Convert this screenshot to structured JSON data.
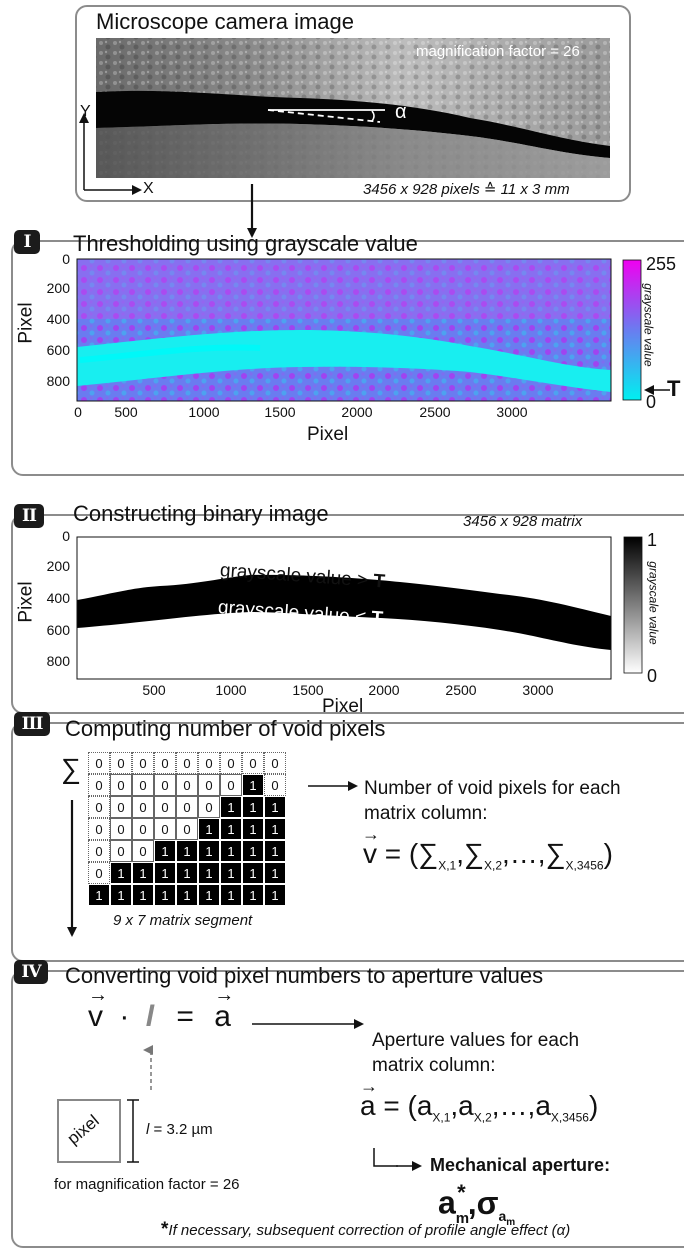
{
  "top": {
    "title": "Microscope camera image",
    "magnification": "magnification factor = 26",
    "angle_label": "α",
    "axis_y": "Y",
    "axis_x": "X",
    "dimensions": "3456 x 928 pixels ≙ 11 x 3 mm"
  },
  "step1": {
    "badge": "I",
    "title": "Thresholding using grayscale value",
    "ylabel": "Pixel",
    "xlabel": "Pixel",
    "yticks": [
      "0",
      "200",
      "400",
      "600",
      "800"
    ],
    "xticks": [
      "0",
      "500",
      "1000",
      "1500",
      "2000",
      "2500",
      "3000"
    ],
    "cbar_max": "255",
    "cbar_min": "0",
    "cbar_label": "grayscale value",
    "threshold": "T",
    "colors": {
      "low": "#00f0f0",
      "mid": "#6a7cf0",
      "high": "#f000f0"
    }
  },
  "step2": {
    "badge": "II",
    "title": "Constructing binary image",
    "matrix_size": "3456 x 928 matrix",
    "ylabel": "Pixel",
    "xlabel": "Pixel",
    "yticks": [
      "0",
      "200",
      "400",
      "600",
      "800"
    ],
    "xticks": [
      "500",
      "1000",
      "1500",
      "2000",
      "2500",
      "3000"
    ],
    "above_label": "grayscale value > ",
    "below_label": "grayscale value < ",
    "threshold": "T",
    "cbar_max": "1",
    "cbar_min": "0",
    "cbar_label": "grayscale value"
  },
  "step3": {
    "badge": "III",
    "title": "Computing number of void pixels",
    "sum_symbol": "∑",
    "matrix": [
      [
        0,
        0,
        0,
        0,
        0,
        0,
        0,
        0,
        0
      ],
      [
        0,
        0,
        0,
        0,
        0,
        0,
        0,
        1,
        0
      ],
      [
        0,
        0,
        0,
        0,
        0,
        0,
        1,
        1,
        1
      ],
      [
        0,
        0,
        0,
        0,
        0,
        1,
        1,
        1,
        1
      ],
      [
        0,
        0,
        0,
        1,
        1,
        1,
        1,
        1,
        1
      ],
      [
        0,
        1,
        1,
        1,
        1,
        1,
        1,
        1,
        1
      ],
      [
        1,
        1,
        1,
        1,
        1,
        1,
        1,
        1,
        1
      ]
    ],
    "segment_caption": "9 x 7 matrix segment",
    "desc_line1": "Number of void pixels for each",
    "desc_line2": "matrix column:",
    "vector": "v",
    "eq_open": " = (",
    "sum": "∑",
    "sub1": "X,1",
    "sub2": "X,2",
    "dots": "…",
    "subn": "X,3456",
    "eq_close": ")"
  },
  "step4": {
    "badge": "IV",
    "title": "Converting void pixel numbers to aperture values",
    "v": "v",
    "dot": "·",
    "l": "l",
    "equals": "=",
    "a": "a",
    "desc_line1": "Aperture values for each",
    "desc_line2": "matrix column:",
    "vec_open": " = (a",
    "sub1": "X,1",
    "comma_a": ",a",
    "sub2": "X,2",
    "dots": ",…,a",
    "subn": "X,3456",
    "vec_close": ")",
    "pixel_label": "pixel",
    "l_symbol": "l",
    "l_value": " = 3.2 µm",
    "for_mag": "for magnification factor = 26",
    "mech_label": "Mechanical aperture:",
    "a_m": "a",
    "m_sub": "m",
    "star": "*",
    "sigma": ",σ",
    "sigma_sub": "a",
    "sigma_subsub": "m",
    "footnote_star": "*",
    "footnote": "If necessary, subsequent correction of profile angle effect (α)"
  }
}
